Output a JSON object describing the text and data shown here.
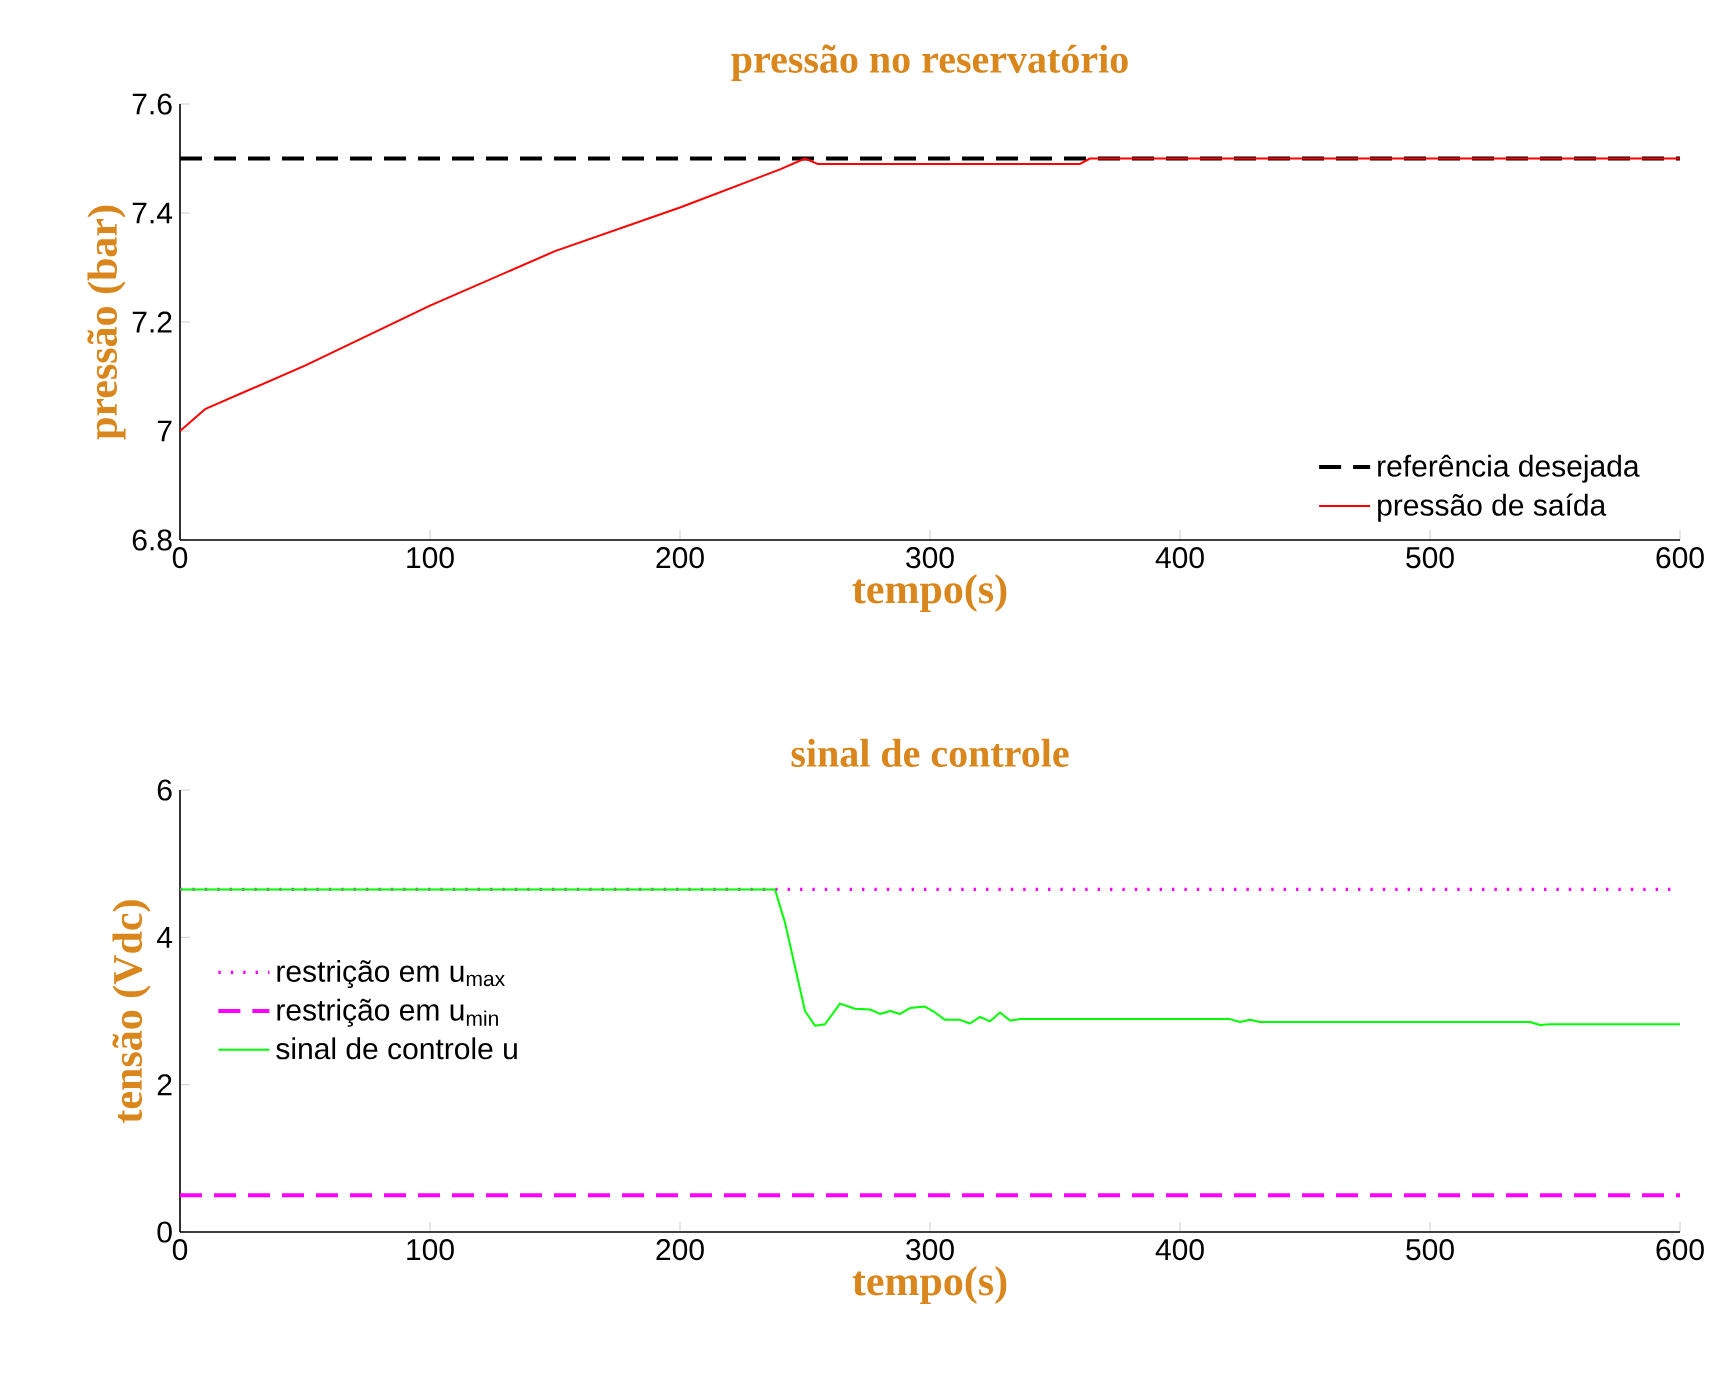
{
  "chart_data": [
    {
      "type": "line",
      "title": "pressão no reservatório",
      "xlabel": "tempo(s)",
      "ylabel": "pressão (bar)",
      "xlim": [
        0,
        600
      ],
      "ylim": [
        6.8,
        7.6
      ],
      "xticks": [
        0,
        100,
        200,
        300,
        400,
        500,
        600
      ],
      "yticks": [
        6.8,
        7,
        7.2,
        7.4,
        7.6
      ],
      "legend": "bottom right",
      "grid": false,
      "series": [
        {
          "name": "referência desejada",
          "color": "#000000",
          "line_style": "dashed",
          "x": [
            0,
            600
          ],
          "values": [
            7.5,
            7.5
          ]
        },
        {
          "name": "pressão de saída",
          "color": "#ff0000",
          "line_style": "solid",
          "x": [
            0,
            10,
            50,
            100,
            150,
            200,
            240,
            250,
            255,
            360,
            364,
            600
          ],
          "values": [
            7.0,
            7.04,
            7.12,
            7.23,
            7.33,
            7.41,
            7.48,
            7.5,
            7.49,
            7.49,
            7.5,
            7.5
          ]
        }
      ]
    },
    {
      "type": "line",
      "title": "sinal de controle",
      "xlabel": "tempo(s)",
      "ylabel": "tensão (Vdc)",
      "xlim": [
        0,
        600
      ],
      "ylim": [
        0,
        6
      ],
      "xticks": [
        0,
        100,
        200,
        300,
        400,
        500,
        600
      ],
      "yticks": [
        0,
        2,
        4,
        6
      ],
      "legend": "left",
      "grid": false,
      "series": [
        {
          "name": "restrição em u$_{max}$",
          "color": "#ff00ff",
          "line_style": "dotted",
          "x": [
            0,
            600
          ],
          "values": [
            4.65,
            4.65
          ]
        },
        {
          "name": "restrição em u$_{min}$",
          "color": "#ff00ff",
          "line_style": "dashed",
          "x": [
            0,
            600
          ],
          "values": [
            0.5,
            0.5
          ]
        },
        {
          "name": "sinal de controle u",
          "color": "#00ff00",
          "line_style": "solid",
          "x": [
            0,
            238,
            242,
            246,
            250,
            254,
            258,
            264,
            270,
            276,
            280,
            284,
            288,
            292,
            298,
            302,
            306,
            312,
            316,
            320,
            324,
            328,
            332,
            336,
            420,
            424,
            428,
            432,
            540,
            544,
            548,
            560,
            600
          ],
          "values": [
            4.65,
            4.65,
            4.2,
            3.6,
            3.0,
            2.8,
            2.82,
            3.1,
            3.03,
            3.02,
            2.96,
            3.0,
            2.96,
            3.04,
            3.06,
            2.98,
            2.88,
            2.88,
            2.83,
            2.92,
            2.86,
            2.98,
            2.87,
            2.89,
            2.89,
            2.85,
            2.88,
            2.85,
            2.85,
            2.81,
            2.82,
            2.82,
            2.82
          ]
        }
      ]
    }
  ]
}
